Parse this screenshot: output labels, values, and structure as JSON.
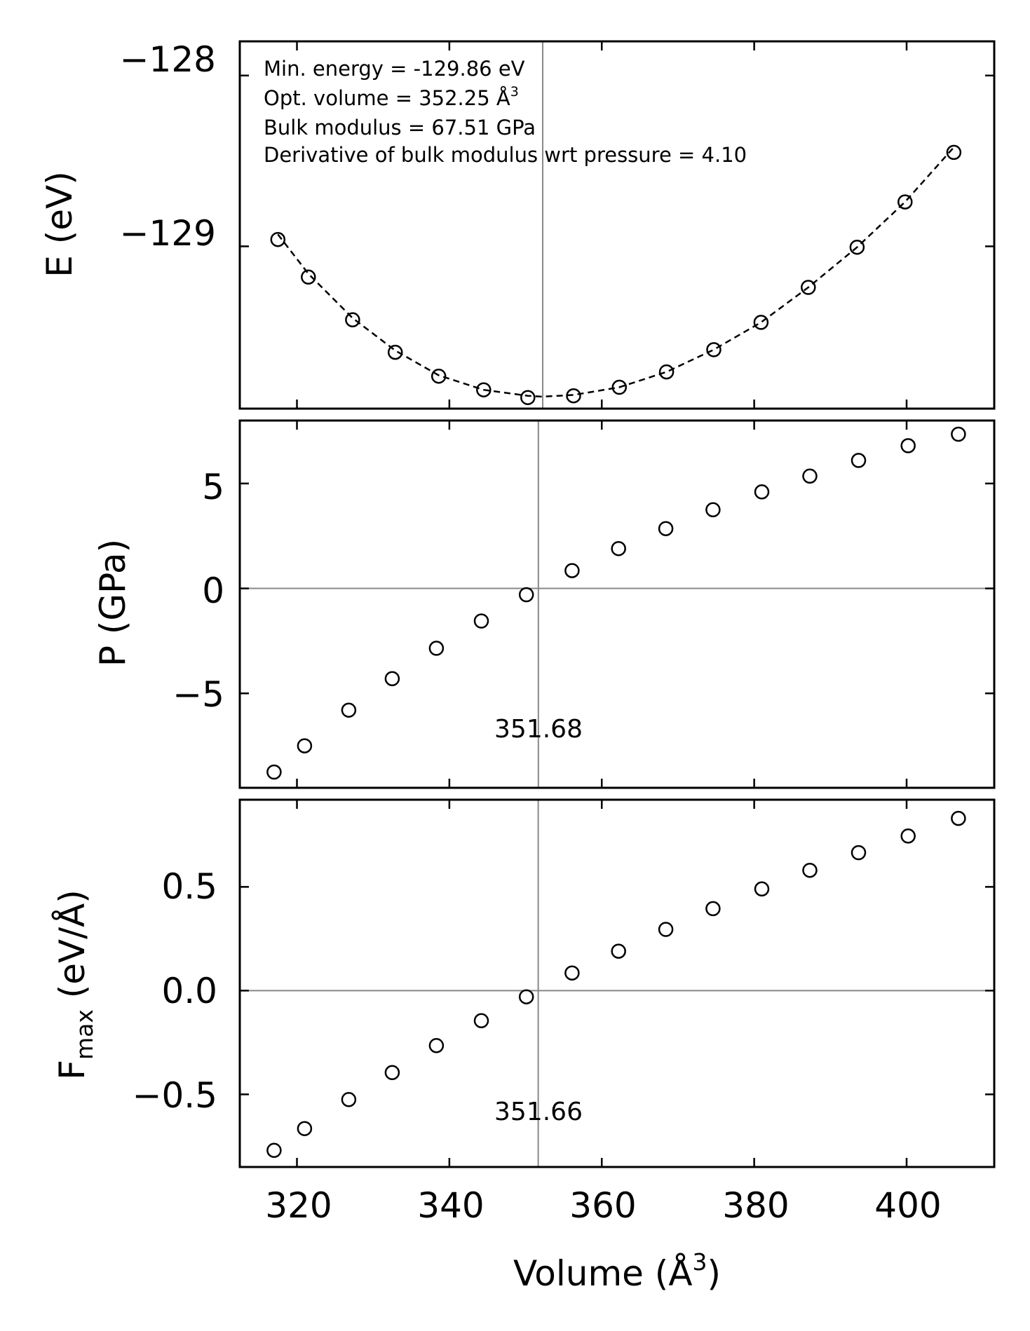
{
  "chart_data": [
    {
      "type": "scatter",
      "panel": "energy",
      "ylabel": "E (eV)",
      "xlabel": "",
      "xlim": [
        312.5,
        411.5
      ],
      "ylim": [
        -129.95,
        -127.8
      ],
      "yticks": [
        -128,
        -129
      ],
      "ytick_labels": [
        "−128",
        "−129"
      ],
      "xticks": [
        320,
        340,
        360,
        380,
        400
      ],
      "points": {
        "x": [
          317.5,
          321.5,
          327.3,
          332.9,
          338.6,
          344.5,
          350.3,
          356.3,
          362.3,
          368.5,
          374.7,
          380.9,
          387.1,
          393.5,
          399.8,
          406.2
        ],
        "y": [
          -128.96,
          -129.18,
          -129.43,
          -129.62,
          -129.76,
          -129.84,
          -129.885,
          -129.875,
          -129.825,
          -129.735,
          -129.605,
          -129.445,
          -129.24,
          -129.005,
          -128.74,
          -128.45
        ]
      },
      "fit_line": {
        "style": "dashed",
        "x": [
          317.5,
          321.5,
          327.3,
          332.9,
          338.6,
          344.5,
          350.3,
          352.25,
          356.3,
          362.3,
          368.5,
          374.7,
          380.9,
          387.1,
          393.5,
          399.8,
          406.2
        ],
        "y": [
          -128.93,
          -129.16,
          -129.42,
          -129.61,
          -129.755,
          -129.84,
          -129.875,
          -129.88,
          -129.87,
          -129.825,
          -129.735,
          -129.605,
          -129.445,
          -129.24,
          -129.005,
          -128.74,
          -128.42
        ]
      },
      "vline_x": 352.25,
      "annotations": {
        "line1": "Min. energy = -129.86 eV",
        "line2_prefix": "Opt. volume = 352.25 Å",
        "line2_sup": "3",
        "line3": "Bulk modulus = 67.51 GPa",
        "line4": "Derivative of bulk modulus wrt pressure = 4.10"
      }
    },
    {
      "type": "scatter",
      "panel": "pressure",
      "ylabel": "P (GPa)",
      "xlabel": "",
      "xlim": [
        312.5,
        411.5
      ],
      "ylim": [
        -9.5,
        8.0
      ],
      "yticks": [
        5,
        0,
        -5
      ],
      "ytick_labels": [
        "5",
        "0",
        "−5"
      ],
      "xticks": [
        320,
        340,
        360,
        380,
        400
      ],
      "points": {
        "x": [
          317.0,
          321.0,
          326.8,
          332.5,
          338.3,
          344.2,
          350.1,
          356.1,
          362.2,
          368.4,
          374.6,
          381.0,
          387.3,
          393.7,
          400.2,
          406.8
        ],
        "y": [
          -8.75,
          -7.5,
          -5.8,
          -4.3,
          -2.85,
          -1.55,
          -0.3,
          0.85,
          1.9,
          2.85,
          3.75,
          4.6,
          5.35,
          6.1,
          6.8,
          7.35
        ]
      },
      "hline_y": 0,
      "vline_x": 351.68,
      "vline_label": "351.68"
    },
    {
      "type": "scatter",
      "panel": "force",
      "ylabel_main": "F",
      "ylabel_sub": "max",
      "ylabel_rest": " (eV/Å)",
      "xlabel_prefix": "Volume (Å",
      "xlabel_sup": "3",
      "xlabel_suffix": ")",
      "xlim": [
        312.5,
        411.5
      ],
      "ylim": [
        -0.85,
        0.92
      ],
      "yticks": [
        0.5,
        0.0,
        -0.5
      ],
      "ytick_labels": [
        "0.5",
        "0.0",
        "−0.5"
      ],
      "xticks": [
        320,
        340,
        360,
        380,
        400
      ],
      "xtick_labels": [
        "320",
        "340",
        "360",
        "380",
        "400"
      ],
      "points": {
        "x": [
          317.0,
          321.0,
          326.8,
          332.5,
          338.3,
          344.2,
          350.1,
          356.1,
          362.2,
          368.4,
          374.6,
          381.0,
          387.3,
          393.7,
          400.2,
          406.8
        ],
        "y": [
          -0.77,
          -0.665,
          -0.525,
          -0.395,
          -0.265,
          -0.145,
          -0.03,
          0.085,
          0.19,
          0.295,
          0.395,
          0.49,
          0.58,
          0.665,
          0.745,
          0.83
        ]
      },
      "hline_y": 0,
      "vline_x": 351.66,
      "vline_label": "351.66"
    }
  ],
  "style": {
    "marker_color": "#000000",
    "guide_line_color": "#888888",
    "axis_color": "#000000"
  }
}
